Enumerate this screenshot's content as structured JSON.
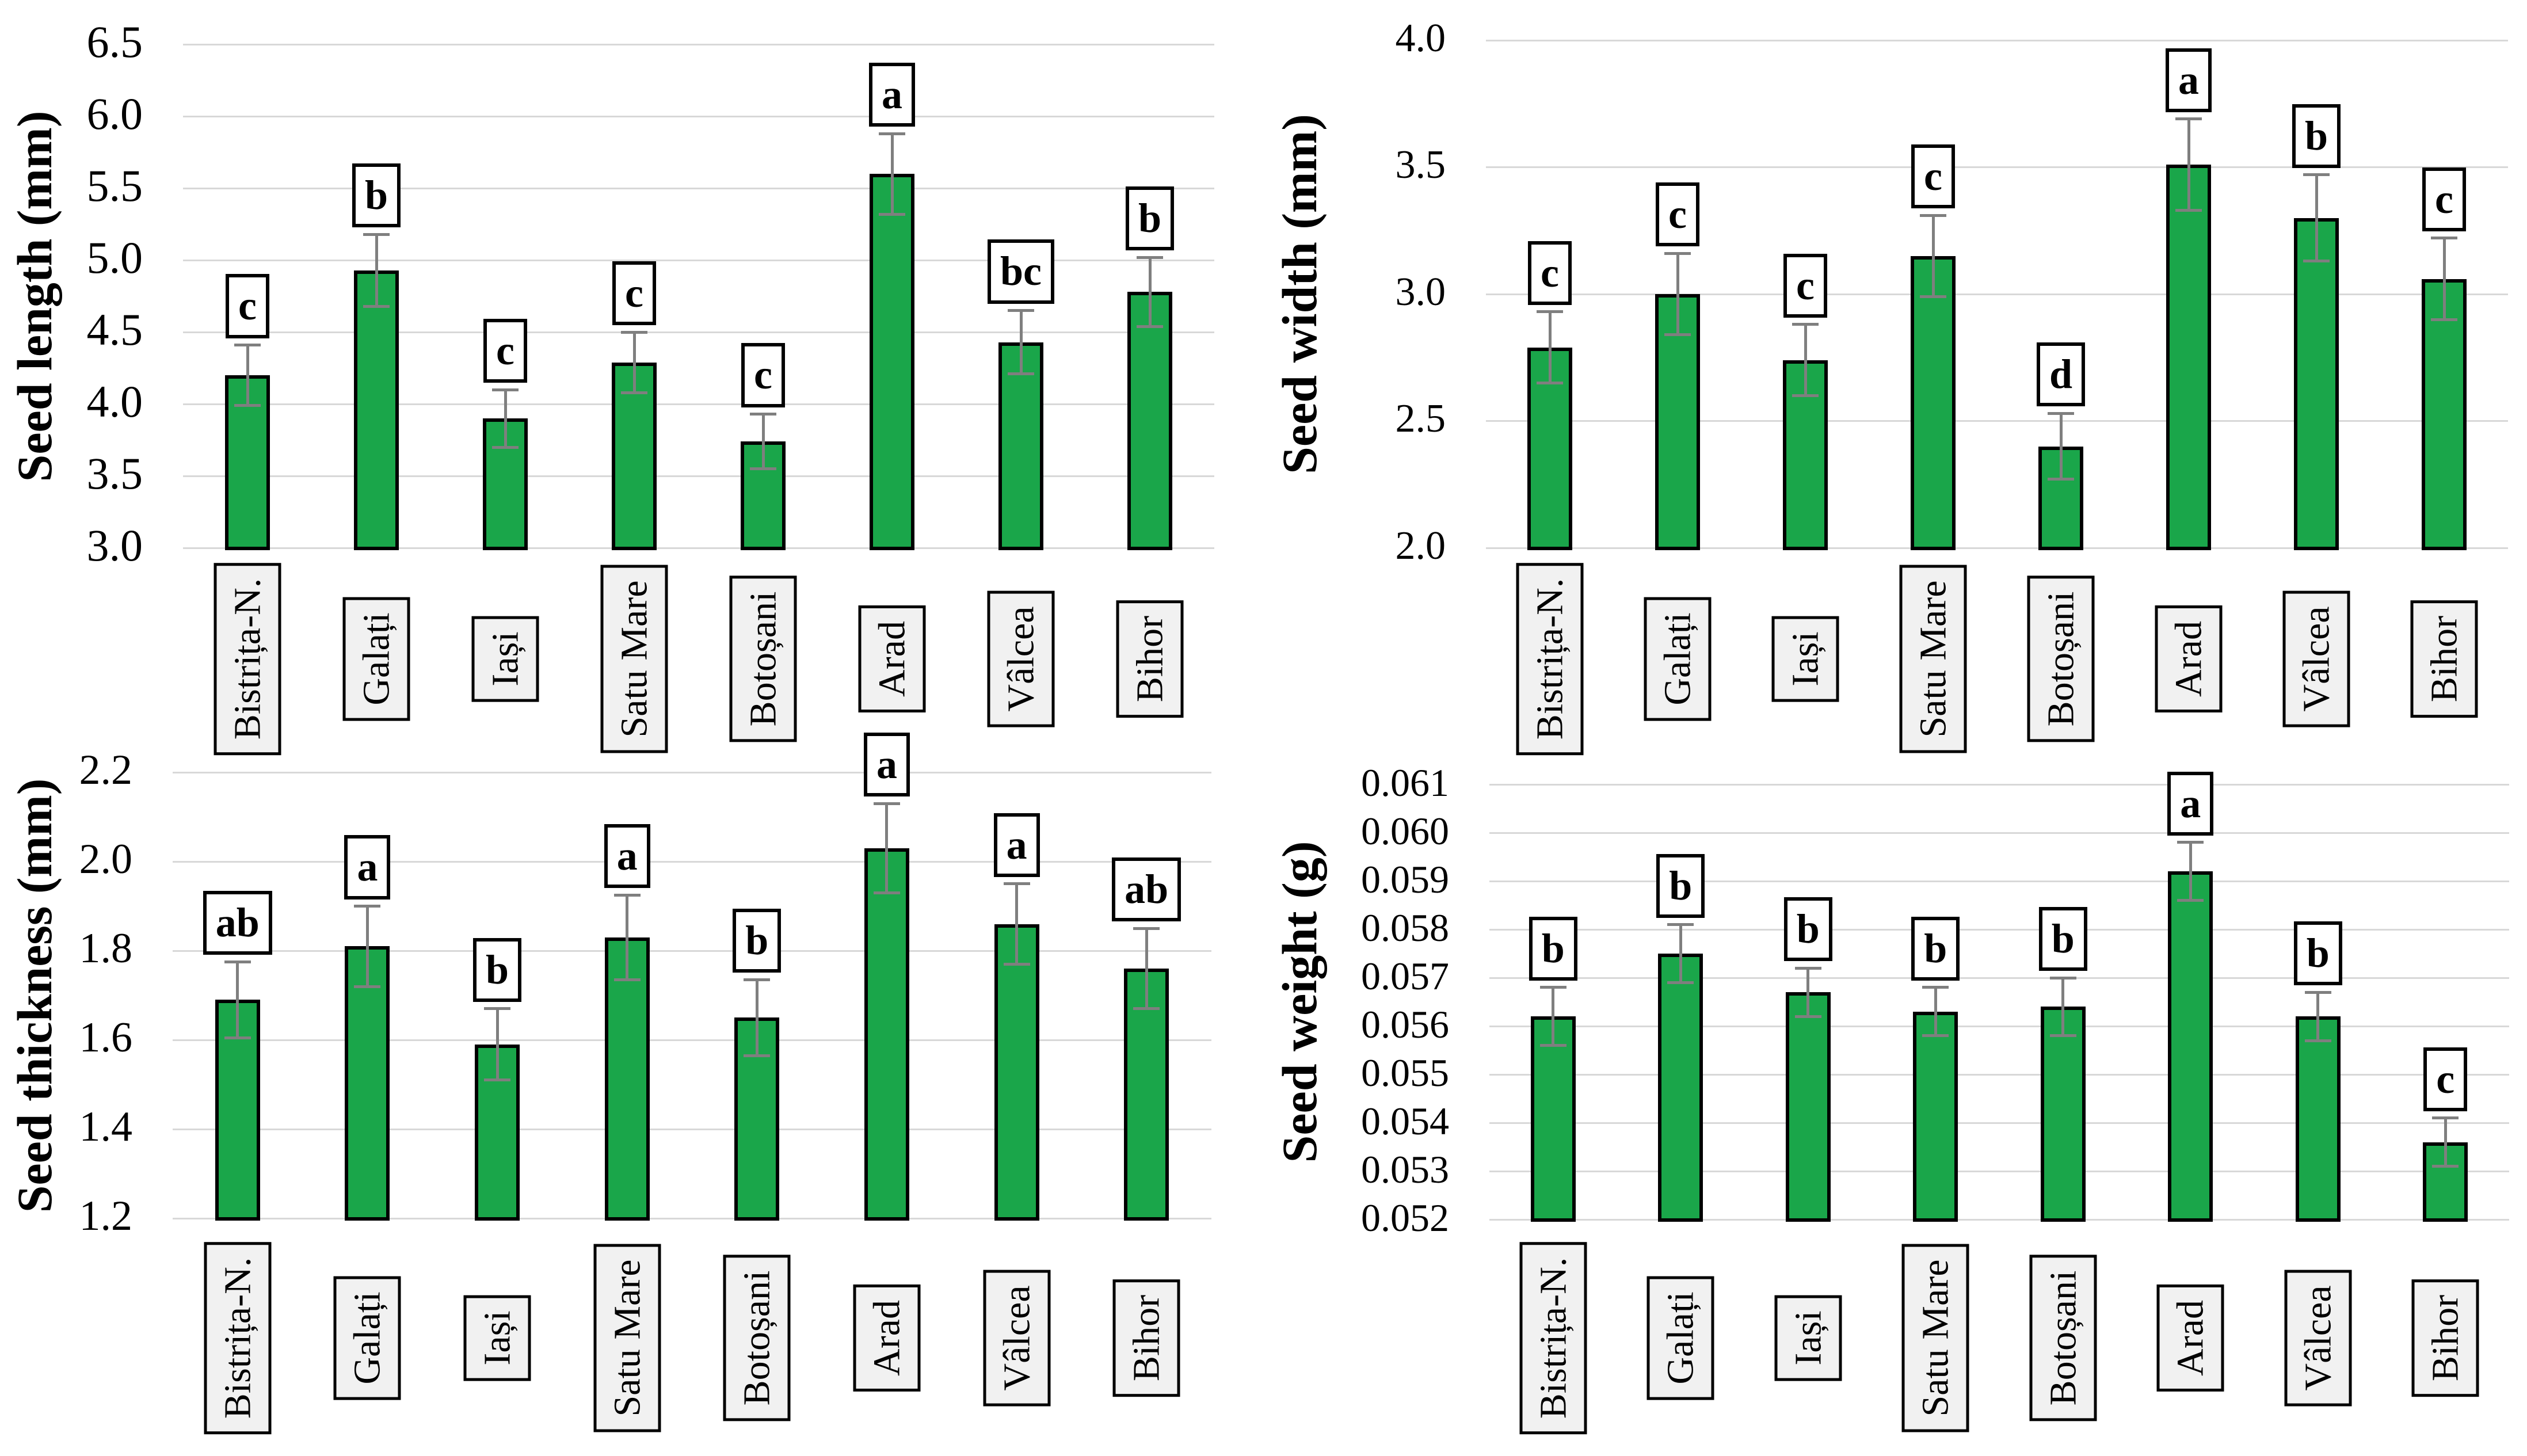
{
  "colors": {
    "background": "#FFFFFF",
    "bar_fill": "#1AA64A",
    "bar_border": "#000000",
    "gridline": "#D8D8D8",
    "error_bar": "#7F7F7F",
    "letter_box_bg": "#FFFFFF",
    "letter_box_border": "#000000",
    "category_box_bg": "#F1F1F1",
    "category_box_border": "#000000",
    "text": "#000000"
  },
  "chart_data": [
    {
      "type": "bar",
      "ylabel": "Seed length (mm)",
      "categories": [
        "Bistrița-N.",
        "Galați",
        "Iași",
        "Satu Mare",
        "Botoșani",
        "Arad",
        "Vâlcea",
        "Bihor"
      ],
      "values": [
        4.2,
        4.93,
        3.9,
        4.29,
        3.74,
        5.6,
        4.43,
        4.78
      ],
      "errors": [
        0.21,
        0.25,
        0.2,
        0.21,
        0.19,
        0.28,
        0.22,
        0.24
      ],
      "sig_letters": [
        "c",
        "b",
        "c",
        "c",
        "c",
        "a",
        "bc",
        "b"
      ],
      "ylim": [
        3.0,
        6.5
      ],
      "ytick_step": 0.5,
      "ytick_decimals": 1,
      "grid": true,
      "legend": null
    },
    {
      "type": "bar",
      "ylabel": "Seed width (mm)",
      "categories": [
        "Bistrița-N.",
        "Galați",
        "Iași",
        "Satu Mare",
        "Botoșani",
        "Arad",
        "Vâlcea",
        "Bihor"
      ],
      "values": [
        2.79,
        3.0,
        2.74,
        3.15,
        2.4,
        3.51,
        3.3,
        3.06
      ],
      "errors": [
        0.14,
        0.16,
        0.14,
        0.16,
        0.13,
        0.18,
        0.17,
        0.16
      ],
      "sig_letters": [
        "c",
        "c",
        "c",
        "c",
        "d",
        "a",
        "b",
        "c"
      ],
      "ylim": [
        2.0,
        4.0
      ],
      "ytick_step": 0.5,
      "ytick_decimals": 1,
      "grid": true,
      "legend": null
    },
    {
      "type": "bar",
      "ylabel": "Seed thickness (mm)",
      "categories": [
        "Bistrița-N.",
        "Galați",
        "Iași",
        "Satu Mare",
        "Botoșani",
        "Arad",
        "Vâlcea",
        "Bihor"
      ],
      "values": [
        1.69,
        1.81,
        1.59,
        1.83,
        1.65,
        2.03,
        1.86,
        1.76
      ],
      "errors": [
        0.085,
        0.09,
        0.08,
        0.095,
        0.085,
        0.1,
        0.09,
        0.09
      ],
      "sig_letters": [
        "ab",
        "a",
        "b",
        "a",
        "b",
        "a",
        "a",
        "ab"
      ],
      "ylim": [
        1.2,
        2.2
      ],
      "ytick_step": 0.2,
      "ytick_decimals": 1,
      "grid": true,
      "legend": null
    },
    {
      "type": "bar",
      "ylabel": "Seed weight (g)",
      "categories": [
        "Bistrița-N.",
        "Galați",
        "Iași",
        "Satu Mare",
        "Botoșani",
        "Arad",
        "Vâlcea",
        "Bihor"
      ],
      "values": [
        0.0562,
        0.0575,
        0.0567,
        0.0563,
        0.0564,
        0.0592,
        0.0562,
        0.0536
      ],
      "errors": [
        0.0006,
        0.0006,
        0.0005,
        0.0005,
        0.0006,
        0.0006,
        0.0005,
        0.0005
      ],
      "sig_letters": [
        "b",
        "b",
        "b",
        "b",
        "b",
        "a",
        "b",
        "c"
      ],
      "ylim": [
        0.052,
        0.061
      ],
      "ytick_step": 0.001,
      "ytick_decimals": 3,
      "grid": true,
      "legend": null
    }
  ]
}
